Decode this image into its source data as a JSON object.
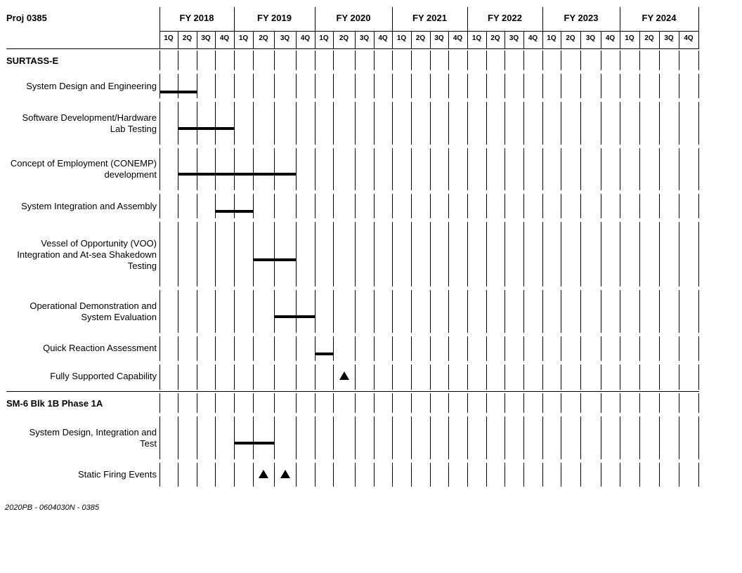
{
  "header": {
    "project": "Proj 0385"
  },
  "fiscal_years": [
    "FY 2018",
    "FY 2019",
    "FY 2020",
    "FY 2021",
    "FY 2022",
    "FY 2023",
    "FY 2024"
  ],
  "quarters": [
    "1Q",
    "2Q",
    "3Q",
    "4Q"
  ],
  "sections": [
    {
      "title": "SURTASS-E",
      "tasks": [
        {
          "name": "System Design and Engineering",
          "start": 0,
          "end": 2
        },
        {
          "name": "Software Development/Hardware Lab Testing",
          "start": 1,
          "end": 4
        },
        {
          "name": "Concept of Employment (CONEMP) development",
          "start": 1,
          "end": 7
        },
        {
          "name": "System Integration and Assembly",
          "start": 3,
          "end": 5
        },
        {
          "name": "Vessel of Opportunity (VOO) Integration and At-sea Shakedown Testing",
          "start": 5,
          "end": 7
        },
        {
          "name": "Operational Demonstration and System Evaluation",
          "start": 6,
          "end": 8
        },
        {
          "name": "Quick Reaction Assessment",
          "start": 8,
          "end": 9
        },
        {
          "name": "Fully Supported Capability",
          "milestones": [
            9
          ]
        }
      ]
    },
    {
      "title": "SM-6 Blk 1B Phase 1A",
      "tasks": [
        {
          "name": "System Design, Integration and Test",
          "start": 4,
          "end": 6
        },
        {
          "name": "Static Firing Events",
          "milestones": [
            5,
            6
          ]
        }
      ]
    }
  ],
  "footer": "2020PB - 0604030N - 0385"
}
